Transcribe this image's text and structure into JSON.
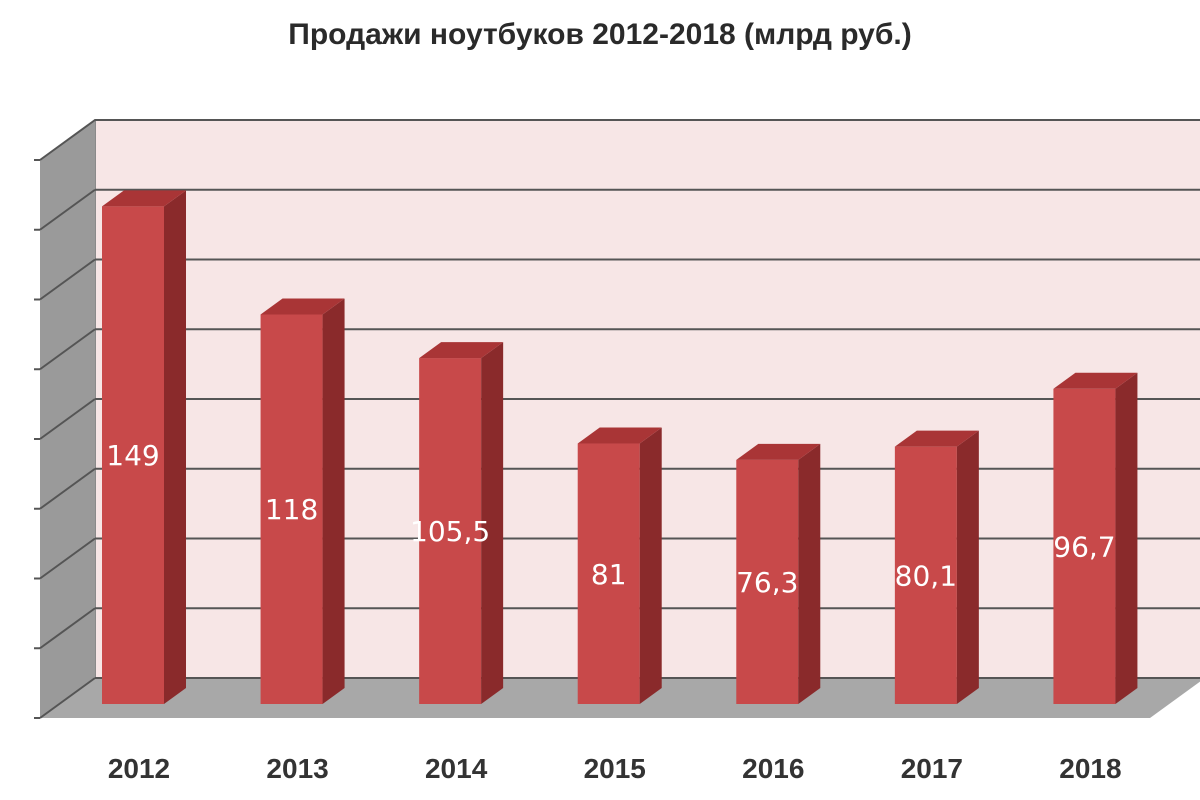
{
  "chart_data": {
    "type": "bar",
    "title": "Продажи ноутбуков 2012-2018  (млрд руб.)",
    "categories": [
      "2012",
      "2013",
      "2014",
      "2015",
      "2016",
      "2017",
      "2018"
    ],
    "values": [
      149,
      118,
      105.5,
      81,
      76.3,
      80.1,
      96.7
    ],
    "value_labels": [
      "149",
      "118",
      "105,5",
      "81",
      "76,3",
      "80,1",
      "96,7"
    ],
    "ylim": [
      0,
      160
    ],
    "grid": true,
    "legend": "none",
    "style": "3d-column",
    "colors": {
      "bar_front": "#c8494a",
      "bar_side": "#8a2a2b",
      "bar_top": "#a93536",
      "back_wall": "#f7e6e6",
      "side_wall": "#9a9a9a",
      "floor": "#a8a8a8"
    }
  }
}
